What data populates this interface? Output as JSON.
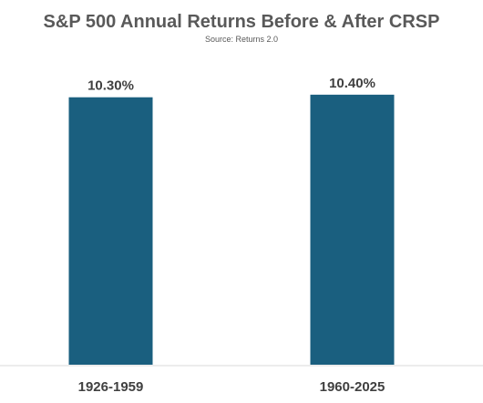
{
  "chart_data": {
    "type": "bar",
    "title": "S&P 500 Annual Returns Before & After CRSP",
    "subtitle": "Source: Returns 2.0",
    "categories": [
      "1926-1959",
      "1960-2025"
    ],
    "values": [
      10.3,
      10.4
    ],
    "data_labels": [
      "10.30%",
      "10.40%"
    ],
    "value_unit": "%",
    "ylim": [
      0,
      10.5
    ],
    "grid": false,
    "legend": "none",
    "colors": {
      "bar": "#1a5f7f",
      "axis": "#d9d9d9",
      "text": "#404040",
      "title": "#595959"
    }
  }
}
